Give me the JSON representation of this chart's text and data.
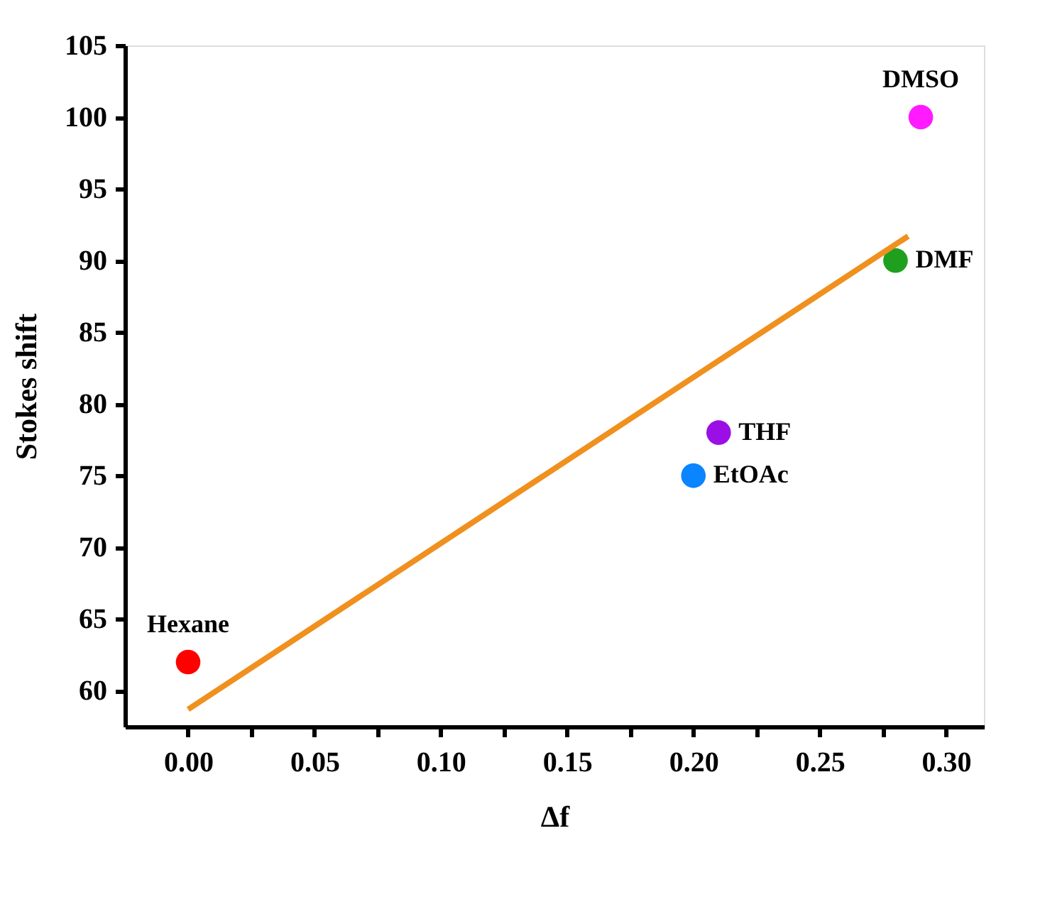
{
  "chart_data": {
    "type": "scatter",
    "xlabel": "Δf",
    "ylabel": "Stokes shift",
    "xlim": [
      -0.025,
      0.315
    ],
    "ylim": [
      57.5,
      105
    ],
    "xticks": [
      {
        "value": 0,
        "label": "0.00"
      },
      {
        "value": 0.025,
        "label": null
      },
      {
        "value": 0.05,
        "label": "0.05"
      },
      {
        "value": 0.075,
        "label": null
      },
      {
        "value": 0.1,
        "label": "0.10"
      },
      {
        "value": 0.125,
        "label": null
      },
      {
        "value": 0.15,
        "label": "0.15"
      },
      {
        "value": 0.175,
        "label": null
      },
      {
        "value": 0.2,
        "label": "0.20"
      },
      {
        "value": 0.225,
        "label": null
      },
      {
        "value": 0.25,
        "label": "0.25"
      },
      {
        "value": 0.275,
        "label": null
      },
      {
        "value": 0.3,
        "label": "0.30"
      }
    ],
    "yticks": [
      60,
      65,
      70,
      75,
      80,
      85,
      90,
      95,
      100,
      105
    ],
    "grid": false,
    "legend": false,
    "series": [
      {
        "marker": "circle",
        "x": [
          0.0,
          0.2,
          0.21,
          0.28,
          0.29
        ],
        "values": [
          62,
          75,
          78,
          90,
          100
        ],
        "colors": [
          "#ff0000",
          "#0a84ff",
          "#9b0fe6",
          "#1ea01e",
          "#ff1aff"
        ]
      },
      {
        "type": "line",
        "x": [
          0.0,
          0.285
        ],
        "values": [
          58.7,
          91.7
        ],
        "color": "#f0901e",
        "line_style": "solid"
      }
    ],
    "annotations": [
      {
        "text": "Hexane",
        "x": 0.0,
        "y": 62
      },
      {
        "text": "EtOAc",
        "x": 0.2,
        "y": 75
      },
      {
        "text": "THF",
        "x": 0.21,
        "y": 78
      },
      {
        "text": "DMF",
        "x": 0.28,
        "y": 90
      },
      {
        "text": "DMSO",
        "x": 0.29,
        "y": 100
      }
    ]
  }
}
